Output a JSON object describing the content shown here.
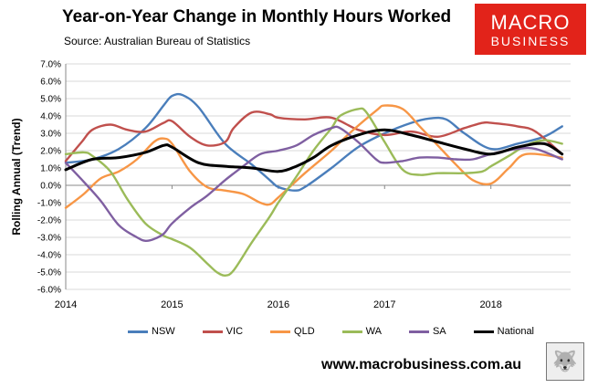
{
  "header": {
    "title": "Year-on-Year Change in Monthly Hours Worked",
    "source": "Source: Australian Bureau of Statistics"
  },
  "logo": {
    "line1": "MACRO",
    "line2": "BUSINESS"
  },
  "footer": {
    "website": "www.macrobusiness.com.au"
  },
  "chart_data": {
    "type": "line",
    "title": "Year-on-Year Change in Monthly Hours Worked",
    "ylabel": "Rolling Annual (Trend)",
    "xlabel": "",
    "xlim": [
      2014.0,
      2018.75
    ],
    "ylim": [
      -6.0,
      7.0
    ],
    "y_ticks": [
      "7.0%",
      "6.0%",
      "5.0%",
      "4.0%",
      "3.0%",
      "2.0%",
      "1.0%",
      "0.0%",
      "-1.0%",
      "-2.0%",
      "-3.0%",
      "-4.0%",
      "-5.0%",
      "-6.0%"
    ],
    "y_tick_values": [
      7,
      6,
      5,
      4,
      3,
      2,
      1,
      0,
      -1,
      -2,
      -3,
      -4,
      -5,
      -6
    ],
    "x_ticks": [
      "2014",
      "2015",
      "2016",
      "2017",
      "2018"
    ],
    "x_tick_values": [
      2014,
      2015,
      2016,
      2017,
      2018
    ],
    "grid": "horizontal",
    "legend_position": "bottom",
    "series": [
      {
        "name": "NSW",
        "color": "#4a7ebb",
        "x": [
          2014.0,
          2014.25,
          2014.5,
          2014.75,
          2014.92,
          2015.0,
          2015.1,
          2015.25,
          2015.5,
          2015.75,
          2015.92,
          2016.0,
          2016.15,
          2016.25,
          2016.5,
          2016.75,
          2017.0,
          2017.25,
          2017.42,
          2017.58,
          2017.75,
          2018.0,
          2018.25,
          2018.5,
          2018.67
        ],
        "y": [
          1.3,
          1.5,
          2.1,
          3.3,
          4.6,
          5.15,
          5.2,
          4.5,
          2.4,
          1.2,
          0.3,
          -0.1,
          -0.3,
          -0.1,
          1.0,
          2.2,
          3.0,
          3.6,
          3.85,
          3.8,
          3.0,
          2.1,
          2.4,
          2.8,
          3.4
        ]
      },
      {
        "name": "VIC",
        "color": "#c0504d",
        "x": [
          2014.0,
          2014.15,
          2014.25,
          2014.42,
          2014.58,
          2014.75,
          2014.92,
          2015.0,
          2015.17,
          2015.33,
          2015.5,
          2015.58,
          2015.75,
          2015.92,
          2016.0,
          2016.25,
          2016.5,
          2016.75,
          2017.0,
          2017.25,
          2017.5,
          2017.75,
          2017.92,
          2018.0,
          2018.25,
          2018.42,
          2018.67
        ],
        "y": [
          1.4,
          2.5,
          3.2,
          3.5,
          3.2,
          3.1,
          3.6,
          3.7,
          2.8,
          2.3,
          2.5,
          3.3,
          4.2,
          4.1,
          3.9,
          3.8,
          3.9,
          3.2,
          2.9,
          3.1,
          2.8,
          3.3,
          3.6,
          3.6,
          3.4,
          3.1,
          1.8
        ]
      },
      {
        "name": "QLD",
        "color": "#f79646",
        "x": [
          2014.0,
          2014.17,
          2014.33,
          2014.5,
          2014.67,
          2014.83,
          2014.92,
          2015.0,
          2015.17,
          2015.33,
          2015.5,
          2015.67,
          2015.83,
          2015.92,
          2016.0,
          2016.25,
          2016.5,
          2016.67,
          2016.92,
          2017.0,
          2017.17,
          2017.33,
          2017.5,
          2017.67,
          2017.83,
          2018.0,
          2018.17,
          2018.33,
          2018.67
        ],
        "y": [
          -1.3,
          -0.5,
          0.4,
          0.8,
          1.5,
          2.5,
          2.7,
          2.4,
          0.8,
          -0.1,
          -0.3,
          -0.5,
          -1.0,
          -1.1,
          -0.7,
          0.7,
          2.0,
          3.0,
          4.3,
          4.6,
          4.4,
          3.4,
          2.3,
          1.2,
          0.3,
          0.1,
          1.0,
          1.8,
          1.6
        ]
      },
      {
        "name": "WA",
        "color": "#9bbb59",
        "x": [
          2014.0,
          2014.17,
          2014.25,
          2014.42,
          2014.58,
          2014.75,
          2014.92,
          2015.0,
          2015.17,
          2015.33,
          2015.42,
          2015.5,
          2015.58,
          2015.75,
          2015.92,
          2016.0,
          2016.17,
          2016.33,
          2016.5,
          2016.58,
          2016.75,
          2016.83,
          2017.0,
          2017.17,
          2017.33,
          2017.5,
          2017.75,
          2017.92,
          2018.0,
          2018.17,
          2018.33,
          2018.5,
          2018.67
        ],
        "y": [
          1.8,
          1.9,
          1.7,
          0.8,
          -0.8,
          -2.2,
          -2.9,
          -3.1,
          -3.6,
          -4.5,
          -5.0,
          -5.2,
          -4.9,
          -3.3,
          -1.8,
          -1.0,
          0.5,
          2.0,
          3.3,
          4.0,
          4.4,
          4.2,
          2.5,
          0.9,
          0.6,
          0.7,
          0.7,
          0.8,
          1.1,
          1.7,
          2.3,
          2.6,
          2.4
        ]
      },
      {
        "name": "SA",
        "color": "#7f5fa1",
        "x": [
          2014.0,
          2014.17,
          2014.33,
          2014.5,
          2014.67,
          2014.75,
          2014.83,
          2014.92,
          2015.0,
          2015.17,
          2015.33,
          2015.5,
          2015.67,
          2015.83,
          2016.0,
          2016.17,
          2016.33,
          2016.5,
          2016.58,
          2016.75,
          2016.92,
          2017.0,
          2017.17,
          2017.33,
          2017.5,
          2017.67,
          2017.83,
          2018.0,
          2018.25,
          2018.42,
          2018.67
        ],
        "y": [
          1.3,
          0.2,
          -0.9,
          -2.3,
          -3.0,
          -3.2,
          -3.1,
          -2.8,
          -2.2,
          -1.3,
          -0.6,
          0.3,
          1.1,
          1.8,
          2.0,
          2.3,
          2.9,
          3.3,
          3.3,
          2.5,
          1.5,
          1.3,
          1.4,
          1.6,
          1.6,
          1.5,
          1.5,
          1.8,
          2.1,
          2.1,
          1.5
        ]
      },
      {
        "name": "National",
        "color": "#000000",
        "x": [
          2014.0,
          2014.25,
          2014.5,
          2014.75,
          2014.92,
          2015.0,
          2015.25,
          2015.5,
          2015.75,
          2016.0,
          2016.17,
          2016.33,
          2016.5,
          2016.75,
          2017.0,
          2017.25,
          2017.5,
          2017.75,
          2018.0,
          2018.25,
          2018.5,
          2018.67
        ],
        "y": [
          0.9,
          1.5,
          1.6,
          1.9,
          2.3,
          2.2,
          1.3,
          1.1,
          1.0,
          0.8,
          1.1,
          1.6,
          2.3,
          2.9,
          3.2,
          2.9,
          2.5,
          2.1,
          1.8,
          2.2,
          2.4,
          1.8
        ]
      }
    ]
  }
}
